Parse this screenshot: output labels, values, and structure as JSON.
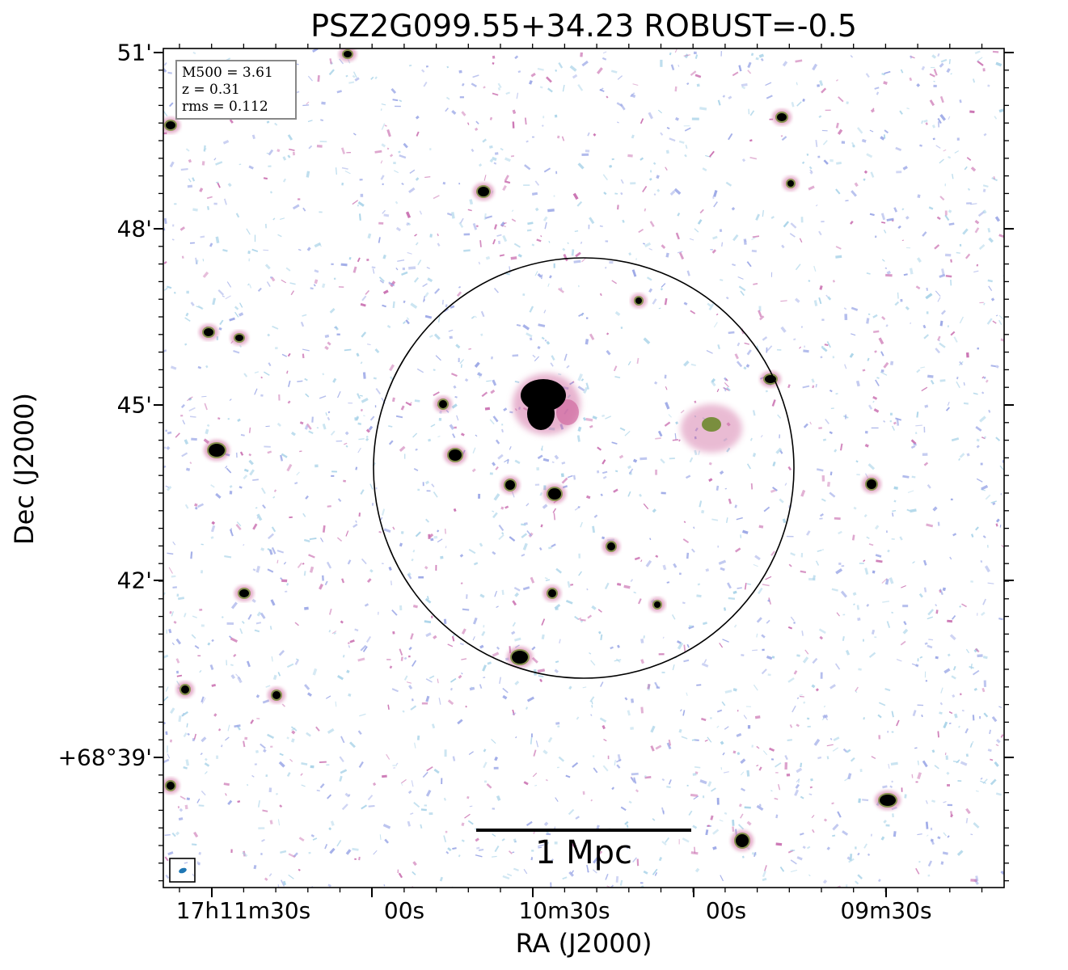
{
  "title": "PSZ2G099.55+34.23 ROBUST=-0.5",
  "axes": {
    "xlabel": "RA (J2000)",
    "ylabel": "Dec (J2000)",
    "xticks": [
      "17h11m30s",
      "00s",
      "10m30s",
      "00s",
      "09m30s"
    ],
    "yticks": [
      "51'",
      "48'",
      "45'",
      "42'",
      "+68°39'"
    ]
  },
  "info": {
    "mass": "M500 = 3.61",
    "redshift": "z = 0.31",
    "rms": "rms = 0.112"
  },
  "scalebar": {
    "label": "1 Mpc"
  },
  "colors": {
    "noise_blue": "#9aa6e6",
    "noise_cyan": "#a9d3e8",
    "noise_pink": "#c96fb0",
    "source_core": "#000000",
    "source_halo": "#d06aa0",
    "source_green": "#6e8a2e",
    "beam": "#1f77b4"
  }
}
